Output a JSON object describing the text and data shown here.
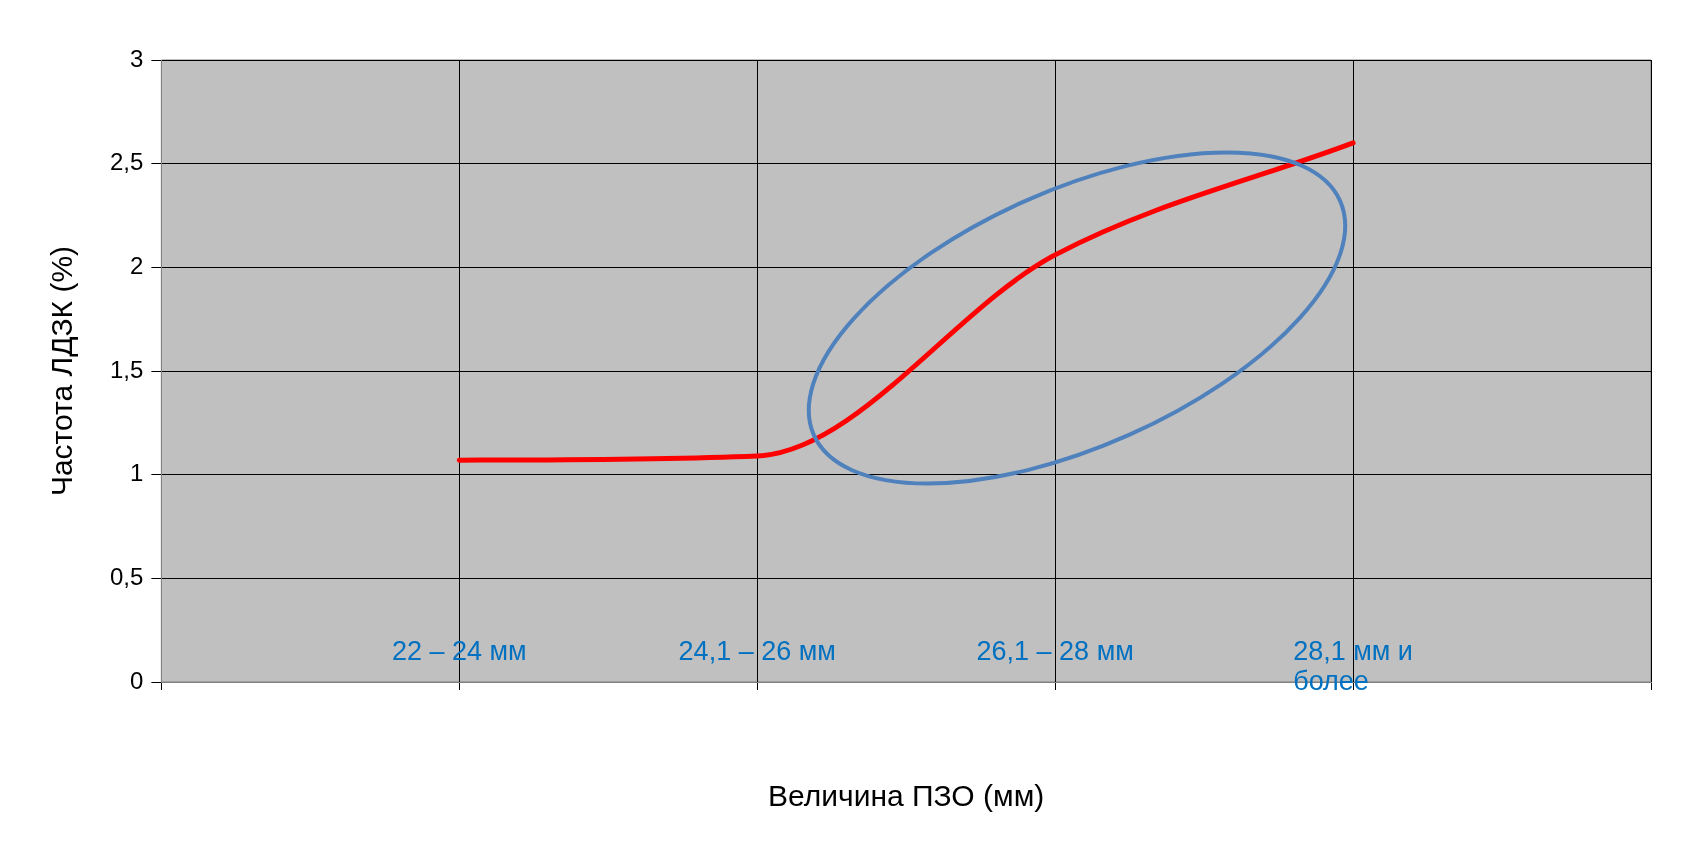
{
  "chart_data": {
    "type": "line",
    "xlabel": "Величина ПЗО (мм)",
    "ylabel": "Частота ЛДЗК (%)",
    "categories": [
      null,
      "22 – 24 мм",
      "24,1 – 26 мм",
      "26,1 – 28 мм",
      "28,1 мм и более",
      null
    ],
    "series": [
      {
        "color": "#ff0000",
        "values": [
          null,
          1.07,
          1.09,
          2.06,
          2.6,
          null
        ]
      }
    ],
    "ylim": [
      0,
      3
    ],
    "yticks": [
      0,
      {
        "value": 0.5,
        "label": "0,5"
      },
      1,
      {
        "value": 1.5,
        "label": "1,5"
      },
      2,
      {
        "value": 2.5,
        "label": "2,5"
      },
      3
    ],
    "grid": true,
    "legend": false,
    "marker": "none",
    "line_style": "solid"
  }
}
